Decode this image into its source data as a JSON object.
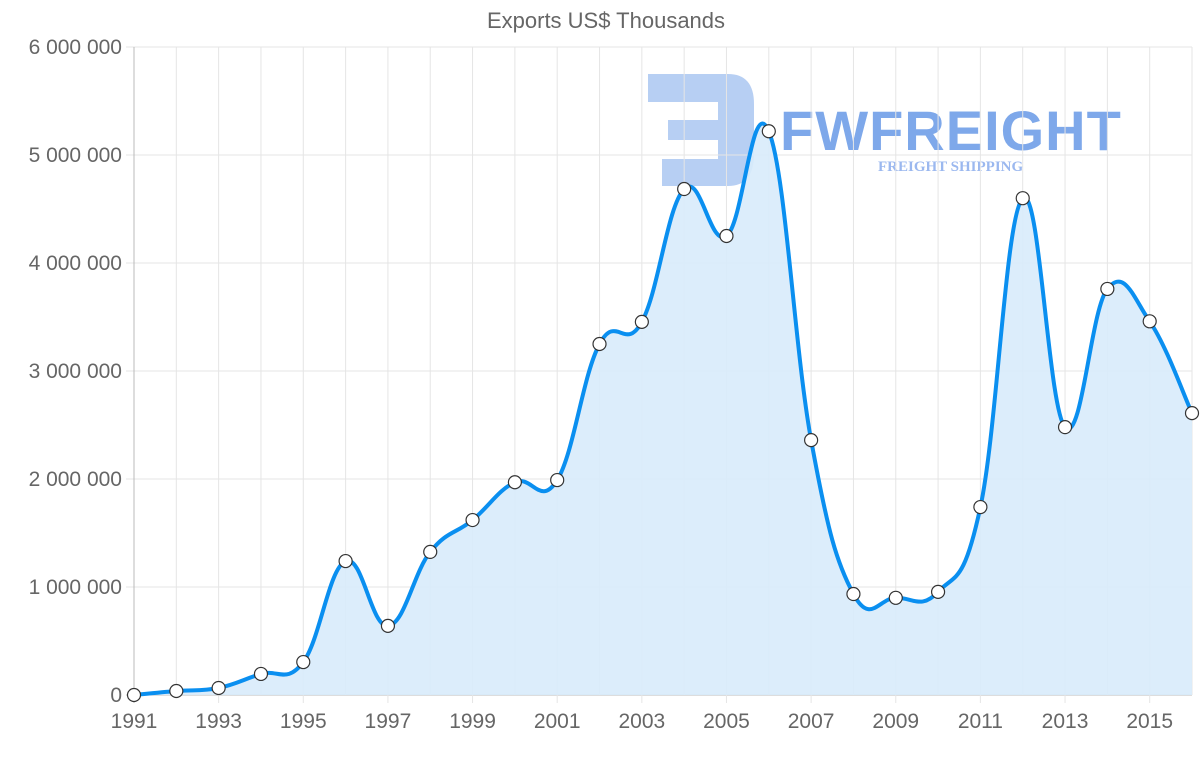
{
  "chart_data": {
    "type": "line",
    "title": "Exports US$ Thousands",
    "xlabel": "",
    "ylabel": "",
    "x": [
      1991,
      1992,
      1993,
      1994,
      1995,
      1996,
      1997,
      1998,
      1999,
      2000,
      2001,
      2002,
      2003,
      2004,
      2005,
      2006,
      2007,
      2008,
      2009,
      2010,
      2011,
      2012,
      2013,
      2014,
      2015,
      2016
    ],
    "series": [
      {
        "name": "Exports US$ Thousands",
        "values": [
          0,
          37000,
          65000,
          195000,
          305000,
          1240000,
          640000,
          1325000,
          1620000,
          1970000,
          1990000,
          3250000,
          3455000,
          4685000,
          4250000,
          5220000,
          2360000,
          935000,
          900000,
          955000,
          1740000,
          4600000,
          2480000,
          3760000,
          3460000,
          2610000
        ],
        "color": "#0a8ff0",
        "fill": "#d8ebfb"
      }
    ],
    "ylim": [
      0,
      6000000
    ],
    "yticks": [
      0,
      1000000,
      2000000,
      3000000,
      4000000,
      5000000,
      6000000
    ],
    "ytick_labels": [
      "0",
      "1 000 000",
      "2 000 000",
      "3 000 000",
      "4 000 000",
      "5 000 000",
      "6 000 000"
    ],
    "xtick_labels": [
      "1991",
      "1993",
      "1995",
      "1997",
      "1999",
      "2001",
      "2003",
      "2005",
      "2007",
      "2009",
      "2011",
      "2013",
      "2015"
    ],
    "grid": true,
    "legend": "none"
  },
  "watermark": {
    "brand": "FWFREIGHT",
    "tagline": "FREIGHT SHIPPING"
  }
}
